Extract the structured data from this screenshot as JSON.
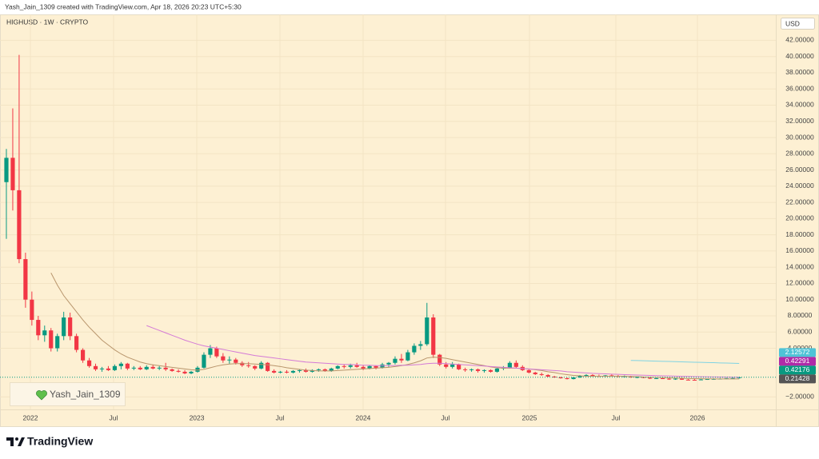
{
  "chart_data": {
    "type": "candlestick",
    "attribution": "Yash_Jain_1309 created with TradingView.com, Apr 18, 2026 20:23 UTC+5:30",
    "title": "HIGHUSD · 1W · CRYPTO",
    "currency": "USD",
    "watermark": "Yash_Jain_1309",
    "brand": "TradingView",
    "up_color": "#089981",
    "down_color": "#f23645",
    "grid": true,
    "xlim": [
      -0.5,
      120.5
    ],
    "xticks": [
      {
        "value": 3.77,
        "label": "2022"
      },
      {
        "value": 16.82,
        "label": "Jul"
      },
      {
        "value": 29.88,
        "label": "2023"
      },
      {
        "value": 42.93,
        "label": "Jul"
      },
      {
        "value": 55.98,
        "label": "2024"
      },
      {
        "value": 68.91,
        "label": "Jul"
      },
      {
        "value": 82.09,
        "label": "2025"
      },
      {
        "value": 95.65,
        "label": "Jul"
      },
      {
        "value": 108.45,
        "label": "2026"
      }
    ],
    "ylim": [
      -3.35,
      45.2
    ],
    "yticks": [
      {
        "value": 42,
        "label": "42.00000"
      },
      {
        "value": 40,
        "label": "40.00000"
      },
      {
        "value": 38,
        "label": "38.00000"
      },
      {
        "value": 36,
        "label": "36.00000"
      },
      {
        "value": 34,
        "label": "34.00000"
      },
      {
        "value": 32,
        "label": "32.00000"
      },
      {
        "value": 30,
        "label": "30.00000"
      },
      {
        "value": 28,
        "label": "28.00000"
      },
      {
        "value": 26,
        "label": "26.00000"
      },
      {
        "value": 24,
        "label": "24.00000"
      },
      {
        "value": 22,
        "label": "22.00000"
      },
      {
        "value": 20,
        "label": "20.00000"
      },
      {
        "value": 18,
        "label": "18.00000"
      },
      {
        "value": 16,
        "label": "16.00000"
      },
      {
        "value": 14,
        "label": "14.00000"
      },
      {
        "value": 12,
        "label": "12.00000"
      },
      {
        "value": 10,
        "label": "10.00000"
      },
      {
        "value": 8,
        "label": "8.00000"
      },
      {
        "value": 6,
        "label": "6.00000"
      },
      {
        "value": 4,
        "label": "4.00000"
      },
      {
        "value": -2,
        "label": "−2.00000"
      }
    ],
    "categories": [
      null,
      null,
      null,
      null,
      null,
      null,
      null,
      null,
      null,
      null,
      null,
      null,
      null,
      null,
      null,
      null,
      null,
      null,
      null,
      null,
      null,
      null,
      null,
      null,
      null,
      null,
      null,
      null,
      null,
      null,
      null,
      null,
      null,
      null,
      null,
      null,
      null,
      null,
      null,
      null,
      null,
      null,
      null,
      null,
      null,
      null,
      null,
      null,
      null,
      null,
      null,
      null,
      null,
      null,
      null,
      null,
      null,
      null,
      null,
      null,
      null,
      null,
      null,
      null,
      null,
      null,
      null,
      null,
      null,
      null,
      null,
      null,
      null,
      null,
      null,
      null,
      null,
      null,
      null,
      null,
      null,
      null,
      null,
      null,
      null,
      null,
      null,
      null,
      null,
      null,
      null,
      null,
      null,
      null,
      null,
      null,
      null,
      null,
      null,
      null,
      null,
      null,
      null,
      null,
      null,
      null,
      null,
      null,
      null,
      null,
      null,
      null,
      null,
      null,
      null,
      null
    ],
    "ohlc": [
      [
        24.5,
        28.6,
        17.5,
        27.5
      ],
      [
        27.5,
        33.6,
        21,
        23.5
      ],
      [
        23.5,
        40.2,
        14.5,
        15
      ],
      [
        15,
        15.8,
        9,
        10
      ],
      [
        10,
        11,
        6.8,
        7.5
      ],
      [
        7.5,
        8,
        5,
        5.6
      ],
      [
        5.6,
        6.8,
        4.8,
        6.2
      ],
      [
        6.2,
        6.5,
        3.6,
        4
      ],
      [
        4,
        5.8,
        3.6,
        5.5
      ],
      [
        5.5,
        8.5,
        5,
        7.8
      ],
      [
        7.8,
        8.4,
        5,
        5.5
      ],
      [
        5.5,
        5.8,
        3.5,
        3.8
      ],
      [
        3.8,
        4,
        2.2,
        2.5
      ],
      [
        2.5,
        2.8,
        1.6,
        1.8
      ],
      [
        1.8,
        2.1,
        1.2,
        1.4
      ],
      [
        1.4,
        1.7,
        1.1,
        1.5
      ],
      [
        1.5,
        1.8,
        1.2,
        1.3
      ],
      [
        1.3,
        2,
        1.2,
        1.8
      ],
      [
        1.8,
        2.3,
        1.4,
        2.1
      ],
      [
        2.1,
        2.2,
        1.3,
        1.5
      ],
      [
        1.5,
        1.8,
        1.3,
        1.6
      ],
      [
        1.6,
        1.8,
        1.3,
        1.4
      ],
      [
        1.4,
        1.9,
        1.3,
        1.7
      ],
      [
        1.7,
        2,
        1.4,
        1.5
      ],
      [
        1.5,
        1.8,
        1.3,
        1.6
      ],
      [
        1.6,
        2.2,
        1.2,
        1.4
      ],
      [
        1.4,
        1.5,
        1.1,
        1.2
      ],
      [
        1.2,
        1.4,
        1,
        1.1
      ],
      [
        1.1,
        1.3,
        0.8,
        0.9
      ],
      [
        0.9,
        1.2,
        0.8,
        1.1
      ],
      [
        1.1,
        1.8,
        1,
        1.6
      ],
      [
        1.6,
        3.5,
        1.5,
        3.2
      ],
      [
        3.2,
        4.4,
        2.8,
        4
      ],
      [
        4,
        4.2,
        2.8,
        3
      ],
      [
        3,
        3.4,
        2.2,
        2.5
      ],
      [
        2.5,
        3,
        2.1,
        2.6
      ],
      [
        2.6,
        2.8,
        2,
        2.2
      ],
      [
        2.2,
        2.4,
        1.7,
        1.9
      ],
      [
        1.9,
        2.3,
        1.6,
        1.8
      ],
      [
        1.8,
        1.9,
        1.3,
        1.5
      ],
      [
        1.5,
        2.4,
        1.4,
        2.2
      ],
      [
        2.2,
        2.3,
        1.1,
        1.2
      ],
      [
        1.2,
        1.4,
        0.9,
        1
      ],
      [
        1,
        1.2,
        0.9,
        1.1
      ],
      [
        1.1,
        1.3,
        0.9,
        1
      ],
      [
        1,
        1.3,
        0.9,
        1.2
      ],
      [
        1.2,
        1.4,
        1,
        1.3
      ],
      [
        1.3,
        1.5,
        1,
        1.1
      ],
      [
        1.1,
        1.4,
        1,
        1.3
      ],
      [
        1.3,
        1.5,
        1.1,
        1.4
      ],
      [
        1.4,
        1.5,
        1.1,
        1.2
      ],
      [
        1.2,
        1.6,
        1.1,
        1.5
      ],
      [
        1.5,
        1.9,
        1.4,
        1.8
      ],
      [
        1.8,
        2,
        1.5,
        1.7
      ],
      [
        1.7,
        2.1,
        1.5,
        1.9
      ],
      [
        1.9,
        2.2,
        1.6,
        1.7
      ],
      [
        1.7,
        1.9,
        1.3,
        1.5
      ],
      [
        1.5,
        1.9,
        1.4,
        1.8
      ],
      [
        1.8,
        1.9,
        1.4,
        1.6
      ],
      [
        1.6,
        2.2,
        1.5,
        2
      ],
      [
        2,
        2.3,
        1.7,
        2.2
      ],
      [
        2.2,
        3,
        2,
        2.7
      ],
      [
        2.7,
        3.3,
        2.2,
        2.5
      ],
      [
        2.5,
        3.8,
        2.4,
        3.5
      ],
      [
        3.5,
        4.6,
        3.2,
        4.3
      ],
      [
        4.3,
        4.9,
        3.8,
        4.5
      ],
      [
        4.5,
        9.6,
        4.3,
        7.8
      ],
      [
        7.8,
        8.2,
        2.8,
        3.2
      ],
      [
        3.2,
        3.3,
        1.8,
        2
      ],
      [
        2,
        2.3,
        1.5,
        1.7
      ],
      [
        1.7,
        2.3,
        1.5,
        2
      ],
      [
        2,
        2.1,
        1.3,
        1.4
      ],
      [
        1.4,
        1.6,
        1.1,
        1.3
      ],
      [
        1.3,
        1.5,
        1.1,
        1.4
      ],
      [
        1.4,
        1.5,
        1,
        1.2
      ],
      [
        1.2,
        1.4,
        1,
        1.3
      ],
      [
        1.3,
        1.4,
        1,
        1.1
      ],
      [
        1.1,
        1.6,
        1,
        1.5
      ],
      [
        1.5,
        1.8,
        1.3,
        1.6
      ],
      [
        1.6,
        2.4,
        1.5,
        2.2
      ],
      [
        2.2,
        2.5,
        1.5,
        1.7
      ],
      [
        1.7,
        1.9,
        1.2,
        1.3
      ],
      [
        1.3,
        1.4,
        0.9,
        1
      ],
      [
        1,
        1.1,
        0.7,
        0.8
      ],
      [
        0.8,
        1,
        0.6,
        0.7
      ],
      [
        0.7,
        0.8,
        0.45,
        0.5
      ],
      [
        0.5,
        0.6,
        0.35,
        0.4
      ],
      [
        0.4,
        0.5,
        0.25,
        0.3
      ],
      [
        0.3,
        0.4,
        0.15,
        0.2
      ],
      [
        0.2,
        0.45,
        0.15,
        0.4
      ],
      [
        0.4,
        0.7,
        0.35,
        0.6
      ],
      [
        0.6,
        0.8,
        0.5,
        0.7
      ],
      [
        0.7,
        0.8,
        0.5,
        0.6
      ],
      [
        0.6,
        0.75,
        0.45,
        0.55
      ],
      [
        0.55,
        0.7,
        0.45,
        0.65
      ],
      [
        0.65,
        0.8,
        0.5,
        0.6
      ],
      [
        0.6,
        0.7,
        0.4,
        0.5
      ],
      [
        0.5,
        0.65,
        0.4,
        0.55
      ],
      [
        0.55,
        0.6,
        0.35,
        0.4
      ],
      [
        0.4,
        0.5,
        0.3,
        0.45
      ],
      [
        0.45,
        0.5,
        0.3,
        0.35
      ],
      [
        0.35,
        0.4,
        0.2,
        0.25
      ],
      [
        0.25,
        0.35,
        0.2,
        0.3
      ],
      [
        0.3,
        0.4,
        0.2,
        0.25
      ],
      [
        0.25,
        0.3,
        0.1,
        0.15
      ],
      [
        0.15,
        0.3,
        0.1,
        0.25
      ],
      [
        0.25,
        0.3,
        0.1,
        0.12
      ],
      [
        0.12,
        0.2,
        0.05,
        0.1
      ],
      [
        0.1,
        0.2,
        0.05,
        0.08
      ],
      [
        0.08,
        0.2,
        0.05,
        0.15
      ],
      [
        0.15,
        0.25,
        0.1,
        0.2
      ],
      [
        0.2,
        0.3,
        0.12,
        0.22
      ],
      [
        0.22,
        0.32,
        0.15,
        0.25
      ],
      [
        0.25,
        0.35,
        0.18,
        0.3
      ],
      [
        0.3,
        0.4,
        0.2,
        0.32
      ],
      [
        0.32,
        0.5,
        0.25,
        0.42176
      ]
    ],
    "series": [
      {
        "color": "#b8956c",
        "values": [
          null,
          null,
          null,
          null,
          null,
          null,
          null,
          13.3,
          11.8,
          10.5,
          9.5,
          8.5,
          7.5,
          6.6,
          5.8,
          5,
          4.4,
          3.8,
          3.3,
          2.9,
          2.6,
          2.3,
          2.1,
          1.95,
          1.85,
          1.75,
          1.65,
          1.55,
          1.45,
          1.35,
          1.3,
          1.4,
          1.6,
          1.8,
          1.95,
          2.05,
          2.1,
          2.1,
          2.1,
          2.05,
          2,
          1.95,
          1.85,
          1.75,
          1.6,
          1.5,
          1.4,
          1.3,
          1.25,
          1.2,
          1.2,
          1.2,
          1.25,
          1.3,
          1.35,
          1.4,
          1.45,
          1.5,
          1.55,
          1.6,
          1.65,
          1.75,
          1.85,
          2,
          2.2,
          2.45,
          2.8,
          2.9,
          2.85,
          2.75,
          2.6,
          2.45,
          2.3,
          2.15,
          2,
          1.85,
          1.7,
          1.6,
          1.55,
          1.55,
          1.55,
          1.5,
          1.45,
          1.35,
          1.25,
          1.1,
          1,
          0.85,
          0.75,
          0.65,
          0.6,
          0.55,
          0.55,
          0.55,
          0.55,
          0.55,
          0.55,
          0.55,
          0.5,
          0.5,
          0.45,
          0.42,
          0.4,
          0.37,
          0.35,
          0.32,
          0.3,
          0.27,
          0.25,
          0.24,
          0.23,
          0.22,
          0.22,
          0.21,
          0.21,
          0.21428
        ]
      },
      {
        "color": "#d47ad6",
        "values": [
          null,
          null,
          null,
          null,
          null,
          null,
          null,
          null,
          null,
          null,
          null,
          null,
          null,
          null,
          null,
          null,
          null,
          null,
          null,
          null,
          null,
          null,
          6.8,
          6.5,
          6.2,
          5.9,
          5.6,
          5.3,
          5,
          4.75,
          4.5,
          4.3,
          4.15,
          4,
          3.85,
          3.7,
          3.55,
          3.4,
          3.25,
          3.1,
          3,
          2.9,
          2.8,
          2.7,
          2.6,
          2.5,
          2.4,
          2.3,
          2.25,
          2.2,
          2.15,
          2.1,
          2.05,
          2,
          2,
          1.95,
          1.9,
          1.9,
          1.85,
          1.85,
          1.85,
          1.85,
          1.9,
          1.9,
          1.95,
          2,
          2.1,
          2.15,
          2.15,
          2.1,
          2.05,
          2,
          1.95,
          1.9,
          1.85,
          1.8,
          1.75,
          1.7,
          1.65,
          1.6,
          1.55,
          1.5,
          1.45,
          1.4,
          1.35,
          1.3,
          1.25,
          1.2,
          1.1,
          1.05,
          1,
          0.95,
          0.9,
          0.87,
          0.84,
          0.81,
          0.78,
          0.75,
          0.72,
          0.7,
          0.67,
          0.65,
          0.62,
          0.6,
          0.58,
          0.56,
          0.54,
          0.52,
          0.5,
          0.49,
          0.47,
          0.46,
          0.45,
          0.44,
          0.43,
          0.42291
        ]
      },
      {
        "color": "#7fd3e3",
        "values": [
          null,
          null,
          null,
          null,
          null,
          null,
          null,
          null,
          null,
          null,
          null,
          null,
          null,
          null,
          null,
          null,
          null,
          null,
          null,
          null,
          null,
          null,
          null,
          null,
          null,
          null,
          null,
          null,
          null,
          null,
          null,
          null,
          null,
          null,
          null,
          null,
          null,
          null,
          null,
          null,
          null,
          null,
          null,
          null,
          null,
          null,
          null,
          null,
          null,
          null,
          null,
          null,
          null,
          null,
          null,
          null,
          null,
          null,
          null,
          null,
          null,
          null,
          null,
          null,
          null,
          null,
          null,
          null,
          null,
          null,
          null,
          null,
          null,
          null,
          null,
          null,
          null,
          null,
          null,
          null,
          null,
          null,
          null,
          null,
          null,
          null,
          null,
          null,
          null,
          null,
          null,
          null,
          null,
          null,
          null,
          null,
          null,
          null,
          2.5,
          2.48,
          2.46,
          2.44,
          2.41,
          2.39,
          2.37,
          2.35,
          2.33,
          2.3,
          2.28,
          2.26,
          2.24,
          2.22,
          2.19,
          2.17,
          2.15,
          2.12572
        ]
      }
    ],
    "price_labels": [
      {
        "value": 2.12572,
        "color": "#4fc3d6"
      },
      {
        "value": 0.42291,
        "color": "#b02aa8"
      },
      {
        "value": 0.42176,
        "color": "#089981"
      },
      {
        "value": 0.21428,
        "color": "#555555"
      }
    ]
  }
}
